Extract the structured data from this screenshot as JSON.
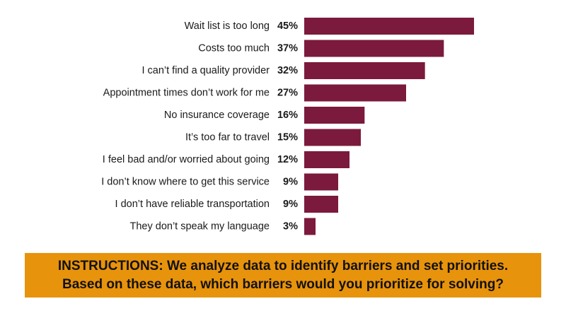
{
  "chart_data": {
    "type": "bar",
    "orientation": "horizontal",
    "categories": [
      "Wait list is too long",
      "Costs too much",
      "I can’t find a quality provider",
      "Appointment times don’t work for me",
      "No insurance coverage",
      "It’s too far to travel",
      "I feel bad and/or worried about going",
      "I don’t know where to get this service",
      "I don’t have reliable transportation",
      "They don’t speak my language"
    ],
    "values": [
      45,
      37,
      32,
      27,
      16,
      15,
      12,
      9,
      9,
      3
    ],
    "value_labels": [
      "45%",
      "37%",
      "32%",
      "27%",
      "16%",
      "15%",
      "12%",
      "9%",
      "9%",
      "3%"
    ],
    "unit": "%",
    "xlim": [
      0,
      50
    ],
    "bar_color": "#7b1a3c",
    "grid": false,
    "legend": "none"
  },
  "instructions": {
    "line1": "INSTRUCTIONS: We analyze data to identify barriers and set priorities.",
    "line2": "Based on these data, which barriers would you prioritize for solving?",
    "background_color": "#e8930c"
  }
}
